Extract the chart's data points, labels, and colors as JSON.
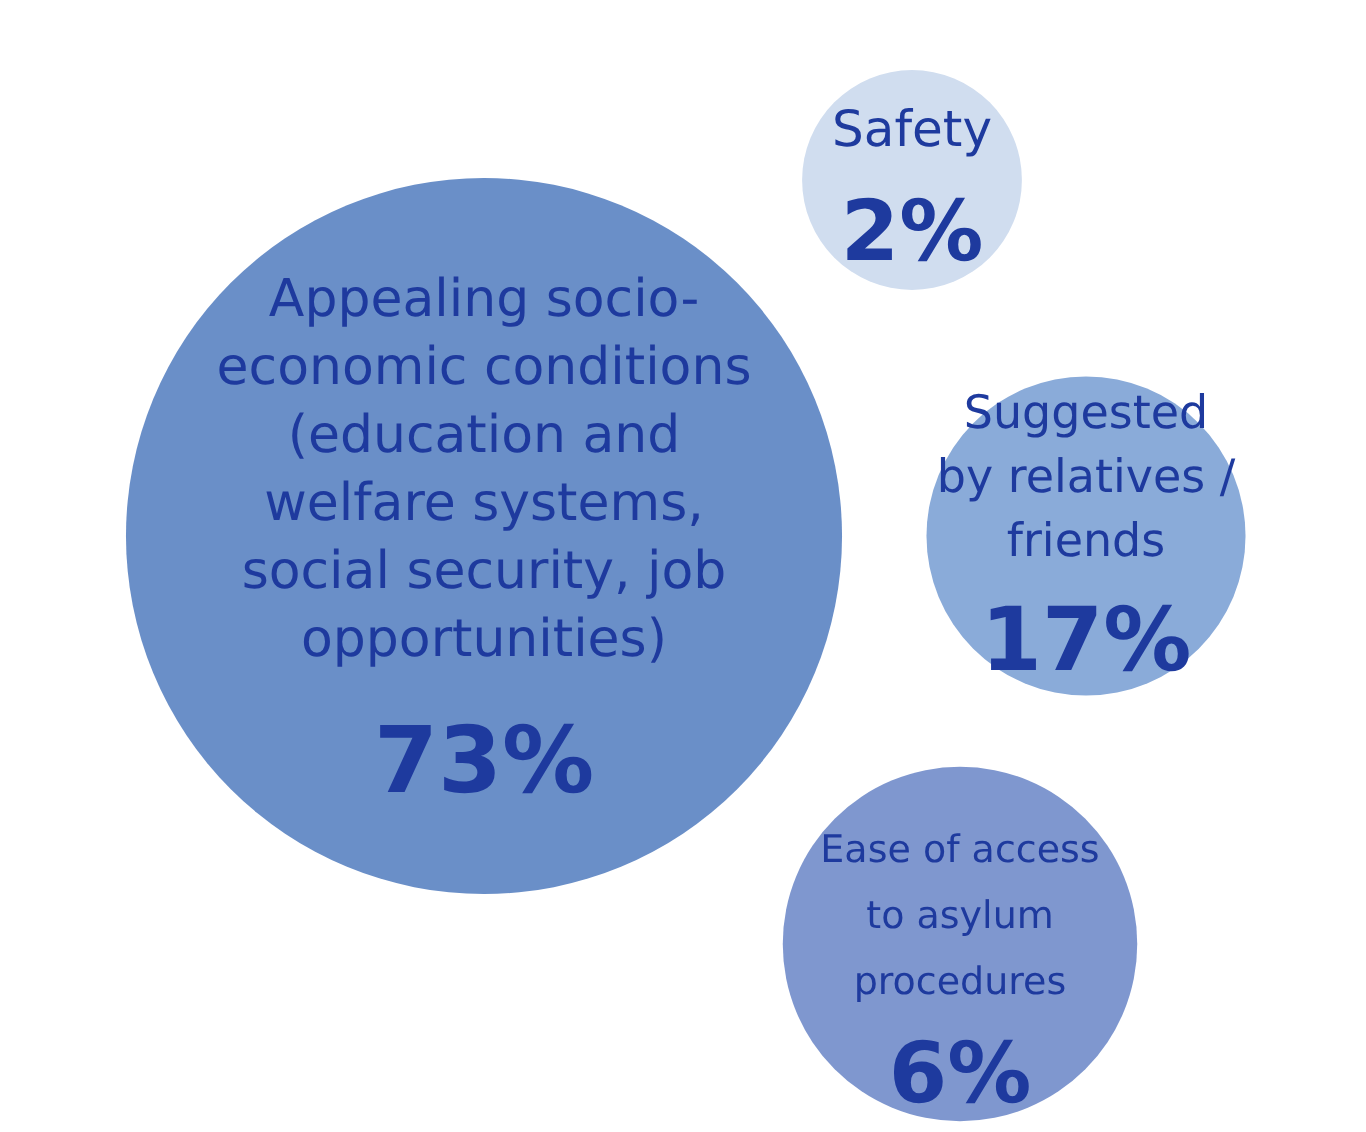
{
  "chart_data": {
    "type": "other",
    "categories": [
      "Appealing socio-\neconomic conditions\n(education and\nwelfare systems,\nsocial security, job\nopportunities)",
      "Safety",
      "Suggested\nby relatives /\nfriends",
      "Ease of access\nto asylum\nprocedures"
    ],
    "values": [
      73,
      2,
      17,
      6
    ],
    "value_labels": [
      "73%",
      "2%",
      "17%",
      "6%"
    ],
    "colors": [
      "#6a8fc8",
      "#d0ddef",
      "#8aabd9",
      "#7f97cf"
    ]
  }
}
